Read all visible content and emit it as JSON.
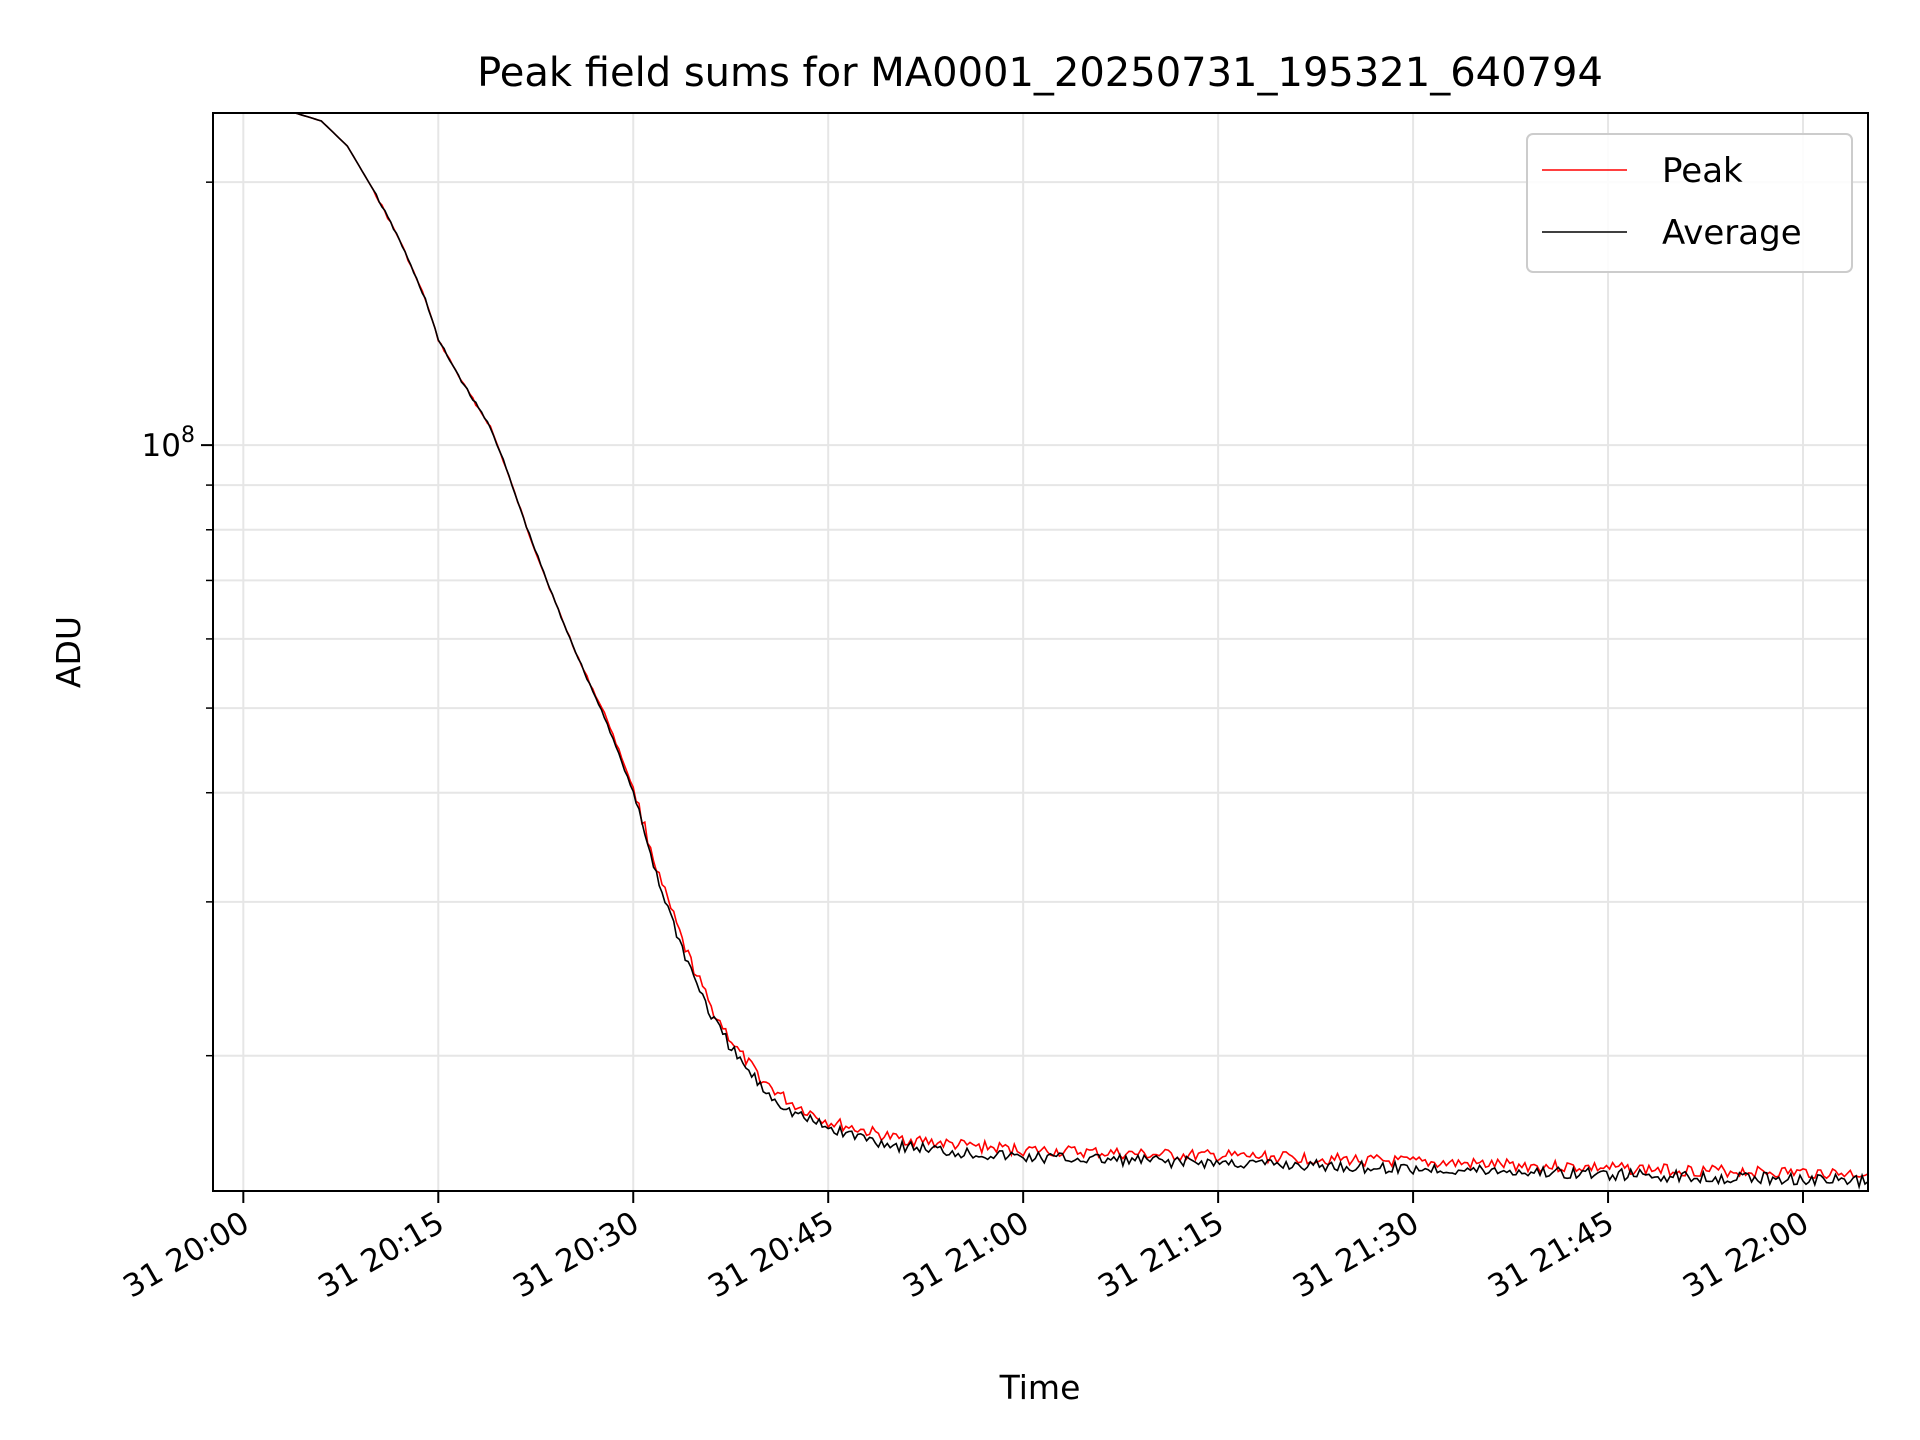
{
  "chart_data": {
    "type": "line",
    "title": "Peak field sums for MA0001_20250731_195321_640794",
    "xlabel": "Time",
    "ylabel": "ADU",
    "y_scale": "log",
    "grid": true,
    "legend_placement": "top-right",
    "xlim": [
      "2025-07-31 19:57:40",
      "2025-07-31 22:05:00"
    ],
    "ylim": [
      14000000,
      240000000
    ],
    "x_ticks": [
      "2025-07-31 20:00",
      "2025-07-31 20:15",
      "2025-07-31 20:30",
      "2025-07-31 20:45",
      "2025-07-31 21:00",
      "2025-07-31 21:15",
      "2025-07-31 21:30",
      "2025-07-31 21:45",
      "2025-07-31 22:00"
    ],
    "x_tick_labels": [
      "31 20:00",
      "31 20:15",
      "31 20:30",
      "31 20:45",
      "31 21:00",
      "31 21:15",
      "31 21:30",
      "31 21:45",
      "31 22:00"
    ],
    "y_major_ticks": [
      100000000
    ],
    "y_major_tick_labels": [
      {
        "base": "10",
        "exp": "8"
      }
    ],
    "y_minor_ticks": [
      20000000,
      30000000,
      40000000,
      50000000,
      60000000,
      70000000,
      80000000,
      90000000,
      200000000
    ],
    "x": [
      "2025-07-31 19:57:40",
      "2025-07-31 20:00",
      "2025-07-31 20:04",
      "2025-07-31 20:06",
      "2025-07-31 20:08",
      "2025-07-31 20:10",
      "2025-07-31 20:12",
      "2025-07-31 20:14",
      "2025-07-31 20:15",
      "2025-07-31 20:17",
      "2025-07-31 20:19",
      "2025-07-31 20:20",
      "2025-07-31 20:22",
      "2025-07-31 20:24",
      "2025-07-31 20:26",
      "2025-07-31 20:28",
      "2025-07-31 20:30",
      "2025-07-31 20:32",
      "2025-07-31 20:34",
      "2025-07-31 20:36",
      "2025-07-31 20:38",
      "2025-07-31 20:40",
      "2025-07-31 20:42",
      "2025-07-31 20:45",
      "2025-07-31 20:50",
      "2025-07-31 20:55",
      "2025-07-31 21:00",
      "2025-07-31 21:10",
      "2025-07-31 21:20",
      "2025-07-31 21:30",
      "2025-07-31 21:40",
      "2025-07-31 21:50",
      "2025-07-31 22:00",
      "2025-07-31 22:05"
    ],
    "series": [
      {
        "name": "Peak",
        "color": "#ff0000",
        "values": [
          240000000,
          240000000,
          240000000,
          235000000,
          220000000,
          196000000,
          172000000,
          147000000,
          132000000,
          117000000,
          105000000,
          96000000,
          79000000,
          66000000,
          56000000,
          48500000,
          40500000,
          32000000,
          26500000,
          22700000,
          20300000,
          18700000,
          17700000,
          16800000,
          16100000,
          15800000,
          15600000,
          15400000,
          15300000,
          15100000,
          14950000,
          14800000,
          14700000,
          14650000
        ]
      },
      {
        "name": "Average",
        "color": "#000000",
        "values": [
          240000000,
          240000000,
          240000000,
          235000000,
          220000000,
          196000000,
          172000000,
          147000000,
          132000000,
          117000000,
          105000000,
          96000000,
          79000000,
          66000000,
          56000000,
          48000000,
          40000000,
          31500000,
          26000000,
          22200000,
          19900000,
          18300000,
          17300000,
          16500000,
          15800000,
          15500000,
          15300000,
          15150000,
          15000000,
          14850000,
          14700000,
          14550000,
          14450000,
          14350000
        ]
      }
    ]
  }
}
